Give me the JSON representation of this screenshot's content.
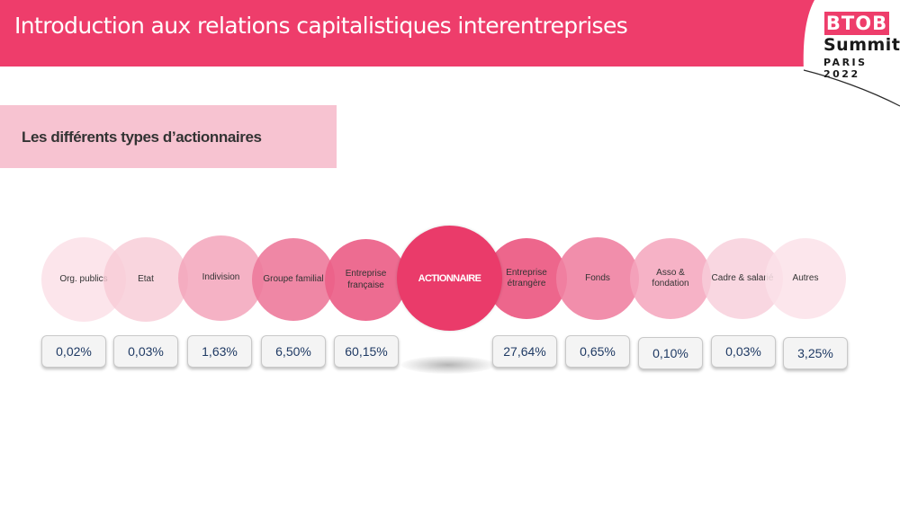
{
  "header": {
    "title": "Introduction aux relations capitalistiques interentreprises"
  },
  "logo": {
    "line1": "BTOB",
    "line2": "Summit",
    "line3": "PARIS 2022"
  },
  "section": {
    "subtitle": "Les différents types d’actionnaires"
  },
  "center": {
    "label": "ACTIONNAIRE"
  },
  "shareholders": [
    {
      "label": "Org. publics",
      "value": "0,02%"
    },
    {
      "label": "Etat",
      "value": "0,03%"
    },
    {
      "label": "Indivision",
      "value": "1,63%"
    },
    {
      "label": "Groupe familial",
      "value": "6,50%"
    },
    {
      "label": "Entreprise française",
      "value": "60,15%"
    },
    {
      "label": "Entreprise étrangère",
      "value": "27,64%"
    },
    {
      "label": "Fonds",
      "value": "0,65%"
    },
    {
      "label": "Asso & fondation",
      "value": "0,10%"
    },
    {
      "label": "Cadre & salarié",
      "value": "0,03%"
    },
    {
      "label": "Autres",
      "value": "3,25%"
    }
  ],
  "colors": {
    "brand_pink": "#ee3d6b",
    "subtitle_bg": "#f7c3d1",
    "value_text": "#1f3a64"
  }
}
